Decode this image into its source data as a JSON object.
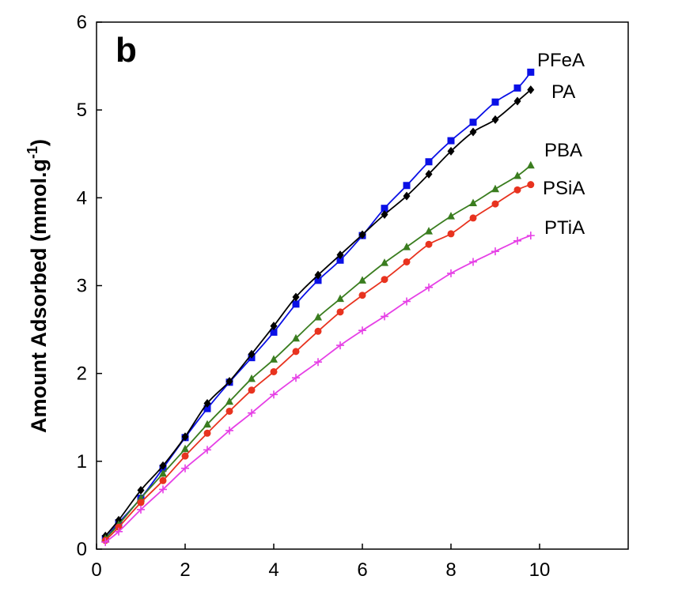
{
  "chart_data": {
    "type": "line",
    "panel_label": "b",
    "title": "",
    "xlabel": "",
    "ylabel": "Amount Adsorbed (mmol.g",
    "ylabel_sup": "-1",
    "ylabel_close": ")",
    "xlim": [
      0,
      12
    ],
    "ylim": [
      0,
      6
    ],
    "x_ticks": [
      0,
      2,
      4,
      6,
      8,
      10
    ],
    "y_ticks": [
      0,
      1,
      2,
      3,
      4,
      5,
      6
    ],
    "grid": false,
    "legend": "inline labels at line ends",
    "series": [
      {
        "name": "PFeA",
        "color": "#0a10e6",
        "marker": "square",
        "x": [
          0.2,
          0.5,
          1.0,
          1.5,
          2.0,
          2.5,
          3.0,
          3.5,
          4.0,
          4.5,
          5.0,
          5.5,
          6.0,
          6.5,
          7.0,
          7.5,
          8.0,
          8.5,
          9.0,
          9.5,
          9.8
        ],
        "y": [
          0.12,
          0.3,
          0.58,
          0.92,
          1.27,
          1.6,
          1.9,
          2.18,
          2.47,
          2.79,
          3.06,
          3.29,
          3.57,
          3.88,
          4.14,
          4.41,
          4.65,
          4.86,
          5.09,
          5.25,
          5.43
        ]
      },
      {
        "name": "PA",
        "color": "#000000",
        "marker": "diamond",
        "x": [
          0.2,
          0.5,
          1.0,
          1.5,
          2.0,
          2.5,
          3.0,
          3.5,
          4.0,
          4.5,
          5.0,
          5.5,
          6.0,
          6.5,
          7.0,
          7.5,
          8.0,
          8.5,
          9.0,
          9.5,
          9.8
        ],
        "y": [
          0.15,
          0.33,
          0.67,
          0.95,
          1.28,
          1.66,
          1.91,
          2.22,
          2.54,
          2.87,
          3.12,
          3.35,
          3.58,
          3.81,
          4.02,
          4.27,
          4.53,
          4.75,
          4.89,
          5.1,
          5.23
        ]
      },
      {
        "name": "PBA",
        "color": "#3a7d1f",
        "marker": "triangle",
        "x": [
          0.2,
          0.5,
          1.0,
          1.5,
          2.0,
          2.5,
          3.0,
          3.5,
          4.0,
          4.5,
          5.0,
          5.5,
          6.0,
          6.5,
          7.0,
          7.5,
          8.0,
          8.5,
          9.0,
          9.5,
          9.8
        ],
        "y": [
          0.12,
          0.28,
          0.58,
          0.86,
          1.14,
          1.42,
          1.68,
          1.94,
          2.16,
          2.4,
          2.64,
          2.85,
          3.06,
          3.26,
          3.44,
          3.62,
          3.79,
          3.94,
          4.1,
          4.25,
          4.37
        ]
      },
      {
        "name": "PSiA",
        "color": "#e8331f",
        "marker": "circle",
        "x": [
          0.2,
          0.5,
          1.0,
          1.5,
          2.0,
          2.5,
          3.0,
          3.5,
          4.0,
          4.5,
          5.0,
          5.5,
          6.0,
          6.5,
          7.0,
          7.5,
          8.0,
          8.5,
          9.0,
          9.5,
          9.8
        ],
        "y": [
          0.1,
          0.25,
          0.53,
          0.78,
          1.06,
          1.32,
          1.57,
          1.81,
          2.02,
          2.25,
          2.48,
          2.7,
          2.89,
          3.07,
          3.27,
          3.47,
          3.59,
          3.77,
          3.93,
          4.09,
          4.15
        ]
      },
      {
        "name": "PTiA",
        "color": "#e640e6",
        "marker": "plus",
        "x": [
          0.2,
          0.5,
          1.0,
          1.5,
          2.0,
          2.5,
          3.0,
          3.5,
          4.0,
          4.5,
          5.0,
          5.5,
          6.0,
          6.5,
          7.0,
          7.5,
          8.0,
          8.5,
          9.0,
          9.5,
          9.8
        ],
        "y": [
          0.08,
          0.2,
          0.45,
          0.68,
          0.92,
          1.13,
          1.35,
          1.55,
          1.76,
          1.95,
          2.13,
          2.32,
          2.49,
          2.65,
          2.82,
          2.98,
          3.14,
          3.27,
          3.39,
          3.51,
          3.57
        ]
      }
    ]
  }
}
